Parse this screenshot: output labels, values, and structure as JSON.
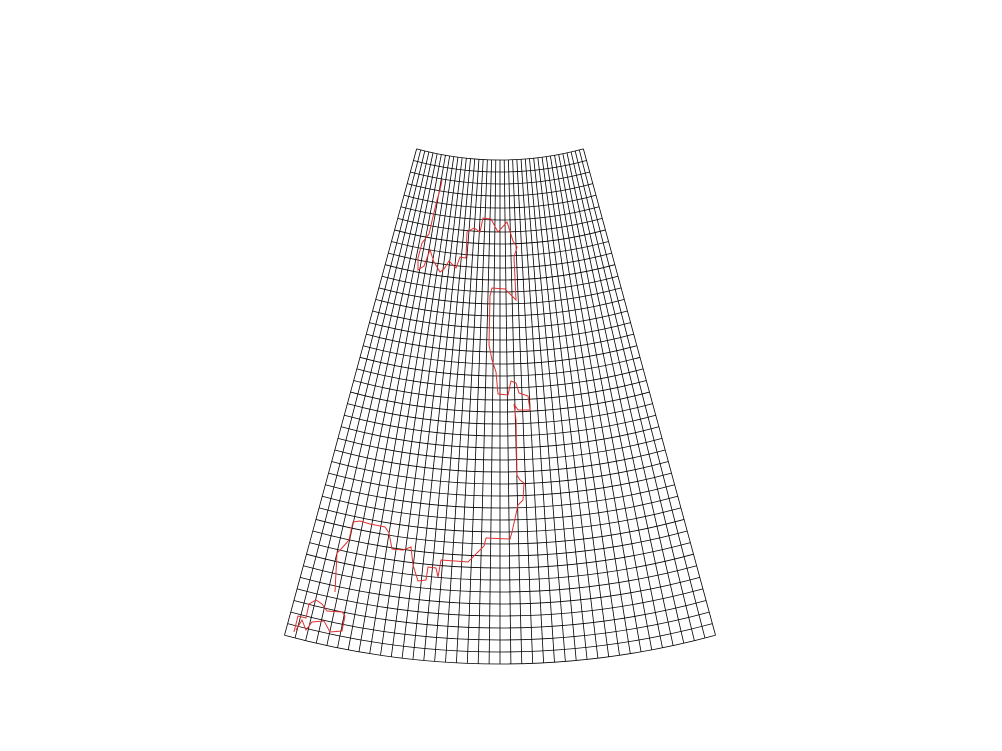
{
  "grid": {
    "radial_divisions": 42,
    "angular_divisions": 40,
    "line_color": "#000000"
  },
  "boundary": {
    "color": "#e03030"
  }
}
